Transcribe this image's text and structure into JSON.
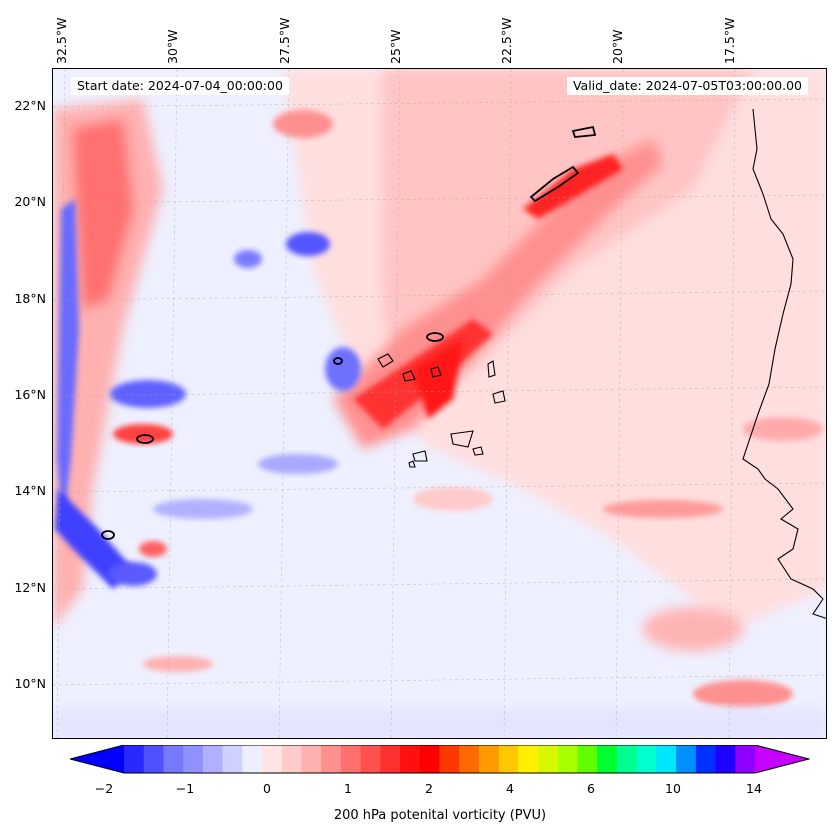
{
  "map": {
    "start_date": "Start date: 2024-07-04_00:00:00",
    "valid_date": "Valid_date: 2024-07-05T03:00:00.00",
    "longitude_labels": [
      "32.5°W",
      "30°W",
      "27.5°W",
      "25°W",
      "22.5°W",
      "20°W",
      "17.5°W"
    ],
    "latitude_labels": [
      "22°N",
      "20°N",
      "18°N",
      "16°N",
      "14°N",
      "12°N",
      "10°N"
    ]
  },
  "colorbar": {
    "label": "200 hPa potenital vorticity (PVU)",
    "tick_labels": [
      "−2",
      "−1",
      "0",
      "1",
      "2",
      "4",
      "6",
      "10",
      "14"
    ],
    "colors": [
      "#0000ff",
      "#2828ff",
      "#5050ff",
      "#7878ff",
      "#9090ff",
      "#b0b0ff",
      "#d0d0ff",
      "#eeeeff",
      "#ffe4e4",
      "#ffcccc",
      "#ffb0b0",
      "#ff9090",
      "#ff7070",
      "#ff5050",
      "#ff3030",
      "#ff1010",
      "#ff0000",
      "#ff3800",
      "#ff6a00",
      "#ff9a00",
      "#ffc800",
      "#fff000",
      "#d8f800",
      "#a8ff00",
      "#60ff00",
      "#00ff30",
      "#00ff90",
      "#00ffcc",
      "#00e4ff",
      "#0090ff",
      "#0030ff",
      "#2000ff",
      "#9000ff",
      "#c800ff"
    ]
  }
}
